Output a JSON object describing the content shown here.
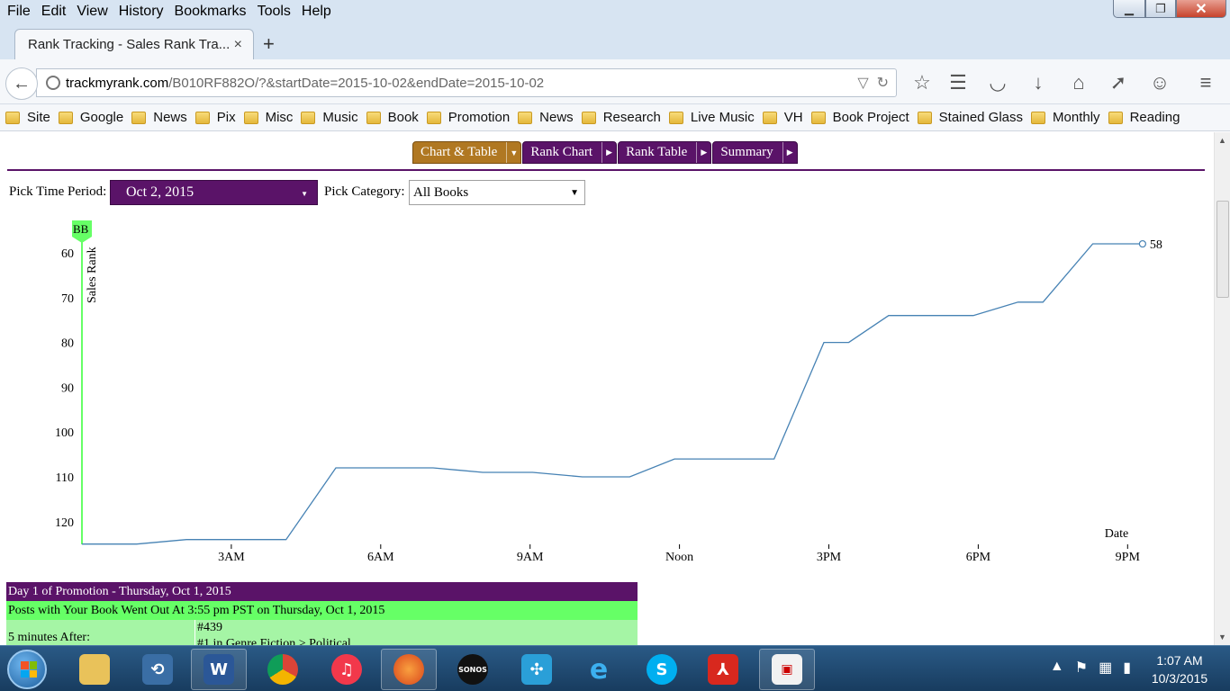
{
  "menu": [
    "File",
    "Edit",
    "View",
    "History",
    "Bookmarks",
    "Tools",
    "Help"
  ],
  "browser_tab": {
    "title": "Rank Tracking - Sales Rank Tra...",
    "close": "×",
    "new_tab": "+"
  },
  "url": {
    "host": "trackmyrank.com",
    "path": "/B010RF882O/?&startDate=2015-10-02&endDate=2015-10-02"
  },
  "bookmarks": [
    "Site",
    "Google",
    "News",
    "Pix",
    "Misc",
    "Music",
    "Book",
    "Promotion",
    "News",
    "Research",
    "Live Music",
    "VH",
    "Book Project",
    "Stained Glass",
    "Monthly",
    "Reading"
  ],
  "page_tabs": [
    {
      "label": "Chart & Table",
      "active": true
    },
    {
      "label": "Rank Chart",
      "active": false
    },
    {
      "label": "Rank Table",
      "active": false
    },
    {
      "label": "Summary",
      "active": false
    }
  ],
  "controls": {
    "period_label": "Pick Time Period:",
    "period_value": "Oct 2, 2015",
    "category_label": "Pick Category:",
    "category_value": "All Books"
  },
  "chart_data": {
    "type": "line",
    "ylabel": "Sales Rank",
    "xlabel": "Date",
    "y_reversed": true,
    "y_ticks": [
      60,
      70,
      80,
      90,
      100,
      110,
      120
    ],
    "x_ticks": [
      "3AM",
      "6AM",
      "9AM",
      "Noon",
      "3PM",
      "6PM",
      "9PM"
    ],
    "x_tick_hours": [
      3,
      6,
      9,
      12,
      15,
      18,
      21
    ],
    "marker_label": "BB",
    "last_value_label": "58",
    "series": [
      {
        "color": "#4682b4",
        "x_hours": [
          0,
          1.1,
          2.1,
          3.1,
          4.1,
          5.1,
          6.05,
          7.05,
          8.05,
          9.05,
          10.05,
          11.0,
          11.9,
          12.9,
          13.9,
          14.9,
          15.4,
          16.2,
          17.2,
          17.9,
          18.8,
          19.3,
          20.3,
          21.3
        ],
        "values": [
          125,
          125,
          124,
          124,
          124,
          108,
          108,
          108,
          109,
          109,
          110,
          110,
          106,
          106,
          106,
          80,
          80,
          74,
          74,
          74,
          71,
          71,
          58,
          58
        ]
      }
    ],
    "highlight_color": "#66ff66"
  },
  "promo": {
    "header": "Day 1 of Promotion - Thursday, Oct 1, 2015",
    "sub": "Posts with Your Book Went Out At 3:55 pm PST on Thursday, Oct 1, 2015",
    "row_label": "5 minutes After:",
    "row_value_line1": "#439",
    "row_value_line2": "#1 in Genre Fiction > Political"
  },
  "taskbar": {
    "apps": [
      "start-orb",
      "file-explorer",
      "app-launcher",
      "word",
      "chrome",
      "itunes",
      "firefox",
      "sonos",
      "unknown-people",
      "internet-explorer",
      "skype",
      "acrobat",
      "app-pinned"
    ],
    "clock_time": "1:07 AM",
    "clock_date": "10/3/2015"
  }
}
